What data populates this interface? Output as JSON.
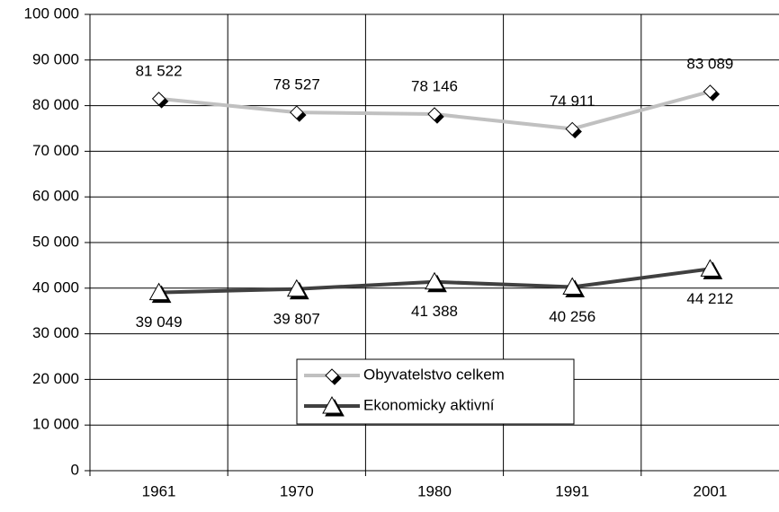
{
  "chart_data": {
    "type": "line",
    "categories": [
      "1961",
      "1970",
      "1980",
      "1991",
      "2001"
    ],
    "series": [
      {
        "name": "Obyvatelstvo celkem",
        "color": "#c0c0c0",
        "marker": "diamond",
        "values": [
          81522,
          78527,
          78146,
          74911,
          83089
        ],
        "value_labels": [
          "81 522",
          "78 527",
          "78 146",
          "74 911",
          "83 089"
        ]
      },
      {
        "name": "Ekonomicky aktivní",
        "color": "#404040",
        "marker": "triangle",
        "values": [
          39049,
          39807,
          41388,
          40256,
          44212
        ],
        "value_labels": [
          "39 049",
          "39 807",
          "41 388",
          "40 256",
          "44 212"
        ]
      }
    ],
    "ylim": [
      0,
      100000
    ],
    "yticks": [
      0,
      {
        "value": 10000,
        "label": "10 000"
      },
      {
        "value": 20000,
        "label": "20 000"
      },
      {
        "value": 30000,
        "label": "30 000"
      },
      {
        "value": 40000,
        "label": "40 000"
      },
      {
        "value": 50000,
        "label": "50 000"
      },
      {
        "value": 60000,
        "label": "60 000"
      },
      {
        "value": 70000,
        "label": "70 000"
      },
      {
        "value": 80000,
        "label": "80 000"
      },
      {
        "value": 90000,
        "label": "90 000"
      },
      {
        "value": 100000,
        "label": "100 000"
      }
    ],
    "grid": true,
    "legend": "center"
  }
}
